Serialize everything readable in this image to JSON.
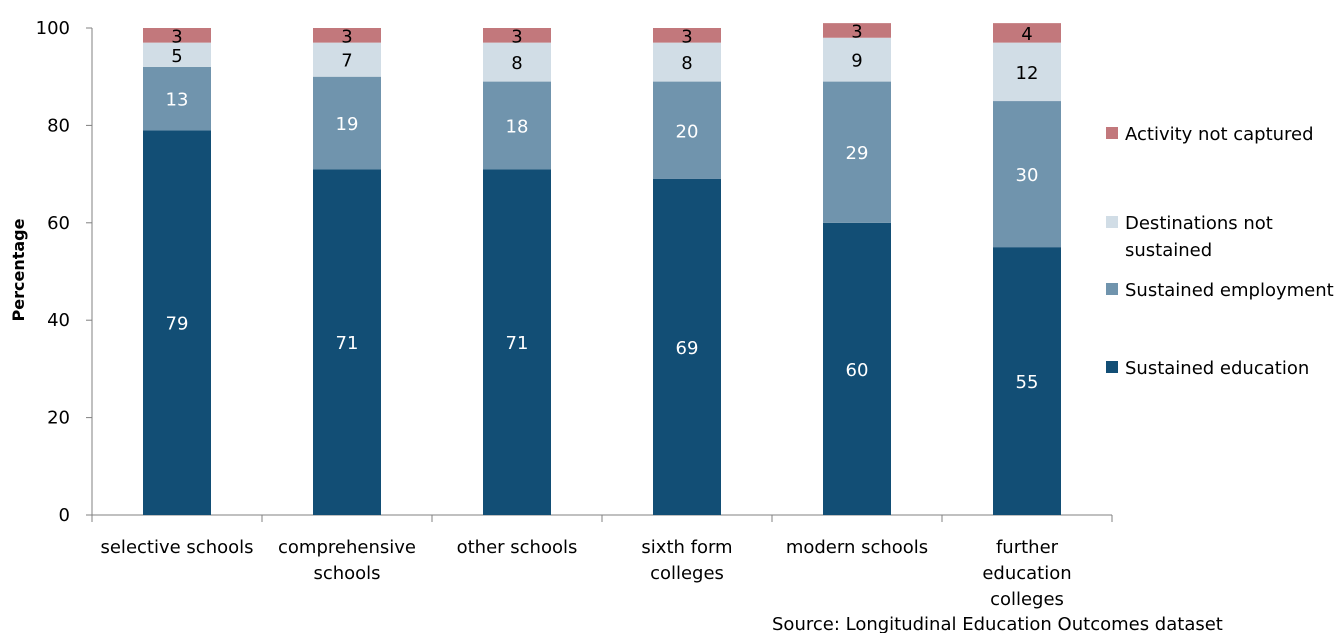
{
  "chart_data": {
    "type": "bar",
    "stacked": true,
    "title": "",
    "xlabel": "",
    "ylabel": "Percentage",
    "ylim": [
      0,
      100
    ],
    "yticks": [
      0,
      20,
      40,
      60,
      80,
      100
    ],
    "categories": [
      [
        "selective schools"
      ],
      [
        "comprehensive",
        "schools"
      ],
      [
        "other schools"
      ],
      [
        "sixth form",
        "colleges"
      ],
      [
        "modern schools"
      ],
      [
        "further",
        "education",
        "colleges"
      ]
    ],
    "series": [
      {
        "name": "Sustained education",
        "color": "#124e75",
        "label_color": "#ffffff",
        "values": [
          79,
          71,
          71,
          69,
          60,
          55
        ]
      },
      {
        "name": "Sustained employment",
        "color": "#7094ad",
        "label_color": "#ffffff",
        "values": [
          13,
          19,
          18,
          20,
          29,
          30
        ]
      },
      {
        "name": "Destinations not sustained",
        "color": "#d1dde6",
        "label_color": "#000000",
        "values": [
          5,
          7,
          8,
          8,
          9,
          12
        ]
      },
      {
        "name": "Activity not captured",
        "color": "#c2787c",
        "label_color": "#000000",
        "values": [
          3,
          3,
          3,
          3,
          3,
          4
        ]
      }
    ],
    "legend": {
      "position": "right",
      "order": [
        3,
        2,
        1,
        0
      ],
      "labels": [
        [
          "Activity not captured"
        ],
        [
          "Destinations not",
          "sustained"
        ],
        [
          "Sustained employment"
        ],
        [
          "Sustained education"
        ]
      ]
    },
    "grid": false,
    "source_note": "Source: Longitudinal Education Outcomes dataset"
  }
}
